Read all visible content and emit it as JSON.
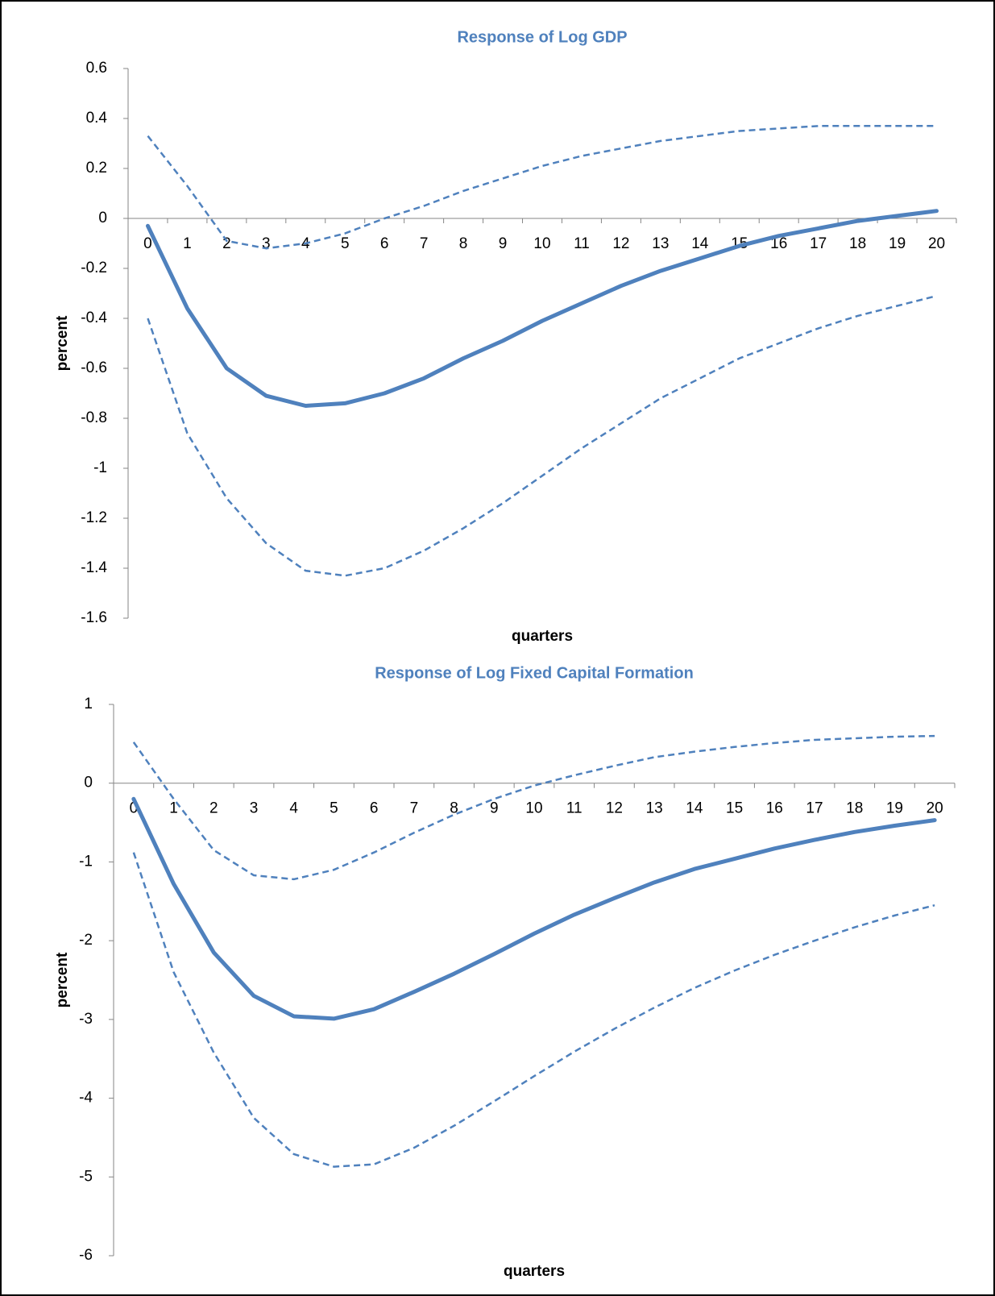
{
  "chart_data": [
    {
      "type": "line",
      "title": "Response of Log GDP",
      "xlabel": "quarters",
      "ylabel": "percent",
      "categories": [
        "0",
        "1",
        "2",
        "3",
        "4",
        "5",
        "6",
        "7",
        "8",
        "9",
        "10",
        "11",
        "12",
        "13",
        "14",
        "15",
        "16",
        "17",
        "18",
        "19",
        "20"
      ],
      "ylim": [
        -1.6,
        0.6
      ],
      "yticks": [
        0.6,
        0.4,
        0.2,
        0,
        -0.2,
        -0.4,
        -0.6,
        -0.8,
        -1,
        -1.2,
        -1.4,
        -1.6
      ],
      "series": [
        {
          "color": "#4f81bd",
          "line_style": "solid",
          "values": [
            -0.03,
            -0.36,
            -0.6,
            -0.71,
            -0.75,
            -0.74,
            -0.7,
            -0.64,
            -0.56,
            -0.49,
            -0.41,
            -0.34,
            -0.27,
            -0.21,
            -0.16,
            -0.11,
            -0.07,
            -0.04,
            -0.01,
            0.01,
            0.03
          ]
        },
        {
          "color": "#4f81bd",
          "line_style": "dashed",
          "values": [
            0.33,
            0.13,
            -0.09,
            -0.12,
            -0.1,
            -0.06,
            0.0,
            0.05,
            0.11,
            0.16,
            0.21,
            0.25,
            0.28,
            0.31,
            0.33,
            0.35,
            0.36,
            0.37,
            0.37,
            0.37,
            0.37
          ]
        },
        {
          "color": "#4f81bd",
          "line_style": "dashed",
          "values": [
            -0.4,
            -0.86,
            -1.12,
            -1.3,
            -1.41,
            -1.43,
            -1.4,
            -1.33,
            -1.24,
            -1.14,
            -1.03,
            -0.92,
            -0.82,
            -0.72,
            -0.64,
            -0.56,
            -0.5,
            -0.44,
            -0.39,
            -0.35,
            -0.31
          ]
        }
      ]
    },
    {
      "type": "line",
      "title": "Response of Log Fixed Capital Formation",
      "xlabel": "quarters",
      "ylabel": "percent",
      "categories": [
        "0",
        "1",
        "2",
        "3",
        "4",
        "5",
        "6",
        "7",
        "8",
        "9",
        "10",
        "11",
        "12",
        "13",
        "14",
        "15",
        "16",
        "17",
        "18",
        "19",
        "20"
      ],
      "ylim": [
        -6,
        1
      ],
      "yticks": [
        1,
        0,
        -1,
        -2,
        -3,
        -4,
        -5,
        -6
      ],
      "series": [
        {
          "color": "#4f81bd",
          "line_style": "solid",
          "values": [
            -0.2,
            -1.28,
            -2.15,
            -2.7,
            -2.96,
            -2.99,
            -2.87,
            -2.65,
            -2.42,
            -2.17,
            -1.91,
            -1.67,
            -1.46,
            -1.26,
            -1.09,
            -0.96,
            -0.83,
            -0.72,
            -0.62,
            -0.54,
            -0.47
          ]
        },
        {
          "color": "#4f81bd",
          "line_style": "dashed",
          "values": [
            0.52,
            -0.2,
            -0.85,
            -1.17,
            -1.22,
            -1.1,
            -0.88,
            -0.63,
            -0.4,
            -0.2,
            -0.03,
            0.1,
            0.22,
            0.33,
            0.4,
            0.46,
            0.51,
            0.55,
            0.57,
            0.59,
            0.6
          ]
        },
        {
          "color": "#4f81bd",
          "line_style": "dashed",
          "values": [
            -0.88,
            -2.4,
            -3.42,
            -4.25,
            -4.71,
            -4.87,
            -4.84,
            -4.63,
            -4.35,
            -4.04,
            -3.72,
            -3.41,
            -3.12,
            -2.85,
            -2.6,
            -2.38,
            -2.18,
            -2.0,
            -1.83,
            -1.68,
            -1.55
          ]
        }
      ]
    }
  ]
}
